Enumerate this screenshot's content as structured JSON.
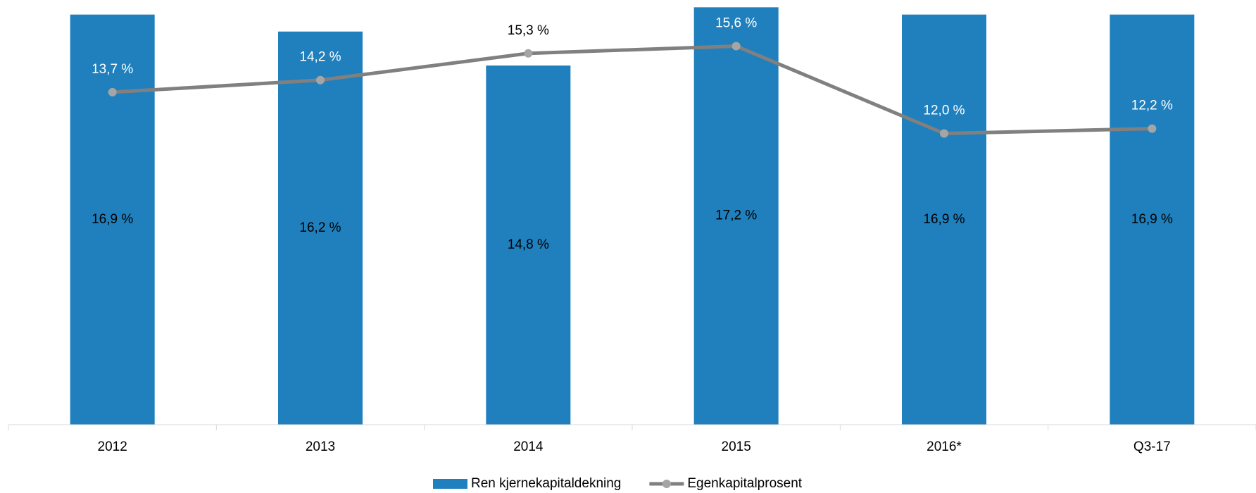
{
  "chart_data": {
    "type": "bar_line",
    "categories": [
      "2012",
      "2013",
      "2014",
      "2015",
      "2016*",
      "Q3-17"
    ],
    "series": [
      {
        "name": "Ren kjernekapitaldekning",
        "type": "bar",
        "color": "#1f80bd",
        "values": [
          16.9,
          16.2,
          14.8,
          17.2,
          16.9,
          16.9
        ],
        "value_labels": [
          "16,9 %",
          "16,2 %",
          "14,8 %",
          "17,2 %",
          "16,9 %",
          "16,9 %"
        ]
      },
      {
        "name": "Egenkapitalprosent",
        "type": "line",
        "color": "#808080",
        "marker_color": "#a5a5a5",
        "values": [
          13.7,
          14.2,
          15.3,
          15.6,
          12.0,
          12.2
        ],
        "value_labels": [
          "13,7 %",
          "14,2 %",
          "15,3 %",
          "15,6 %",
          "12,0 %",
          "12,2 %"
        ]
      }
    ],
    "ylim": [
      0,
      17.5
    ],
    "grid": false,
    "legend": "bottom"
  }
}
